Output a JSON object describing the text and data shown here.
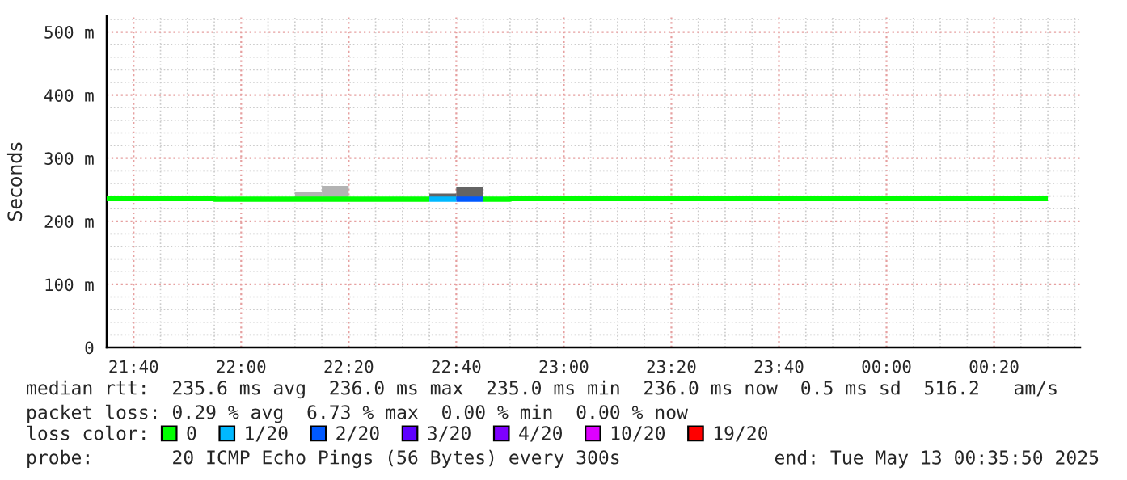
{
  "chart_data": {
    "type": "step",
    "ylabel": "Seconds",
    "x": [
      "2025-05-12T21:35",
      "2025-05-12T21:40",
      "2025-05-12T21:45",
      "2025-05-12T21:50",
      "2025-05-12T21:55",
      "2025-05-12T22:00",
      "2025-05-12T22:05",
      "2025-05-12T22:10",
      "2025-05-12T22:15",
      "2025-05-12T22:20",
      "2025-05-12T22:25",
      "2025-05-12T22:30",
      "2025-05-12T22:35",
      "2025-05-12T22:40",
      "2025-05-12T22:45",
      "2025-05-12T22:50",
      "2025-05-12T22:55",
      "2025-05-12T23:00",
      "2025-05-12T23:05",
      "2025-05-12T23:10",
      "2025-05-12T23:15",
      "2025-05-12T23:20",
      "2025-05-12T23:25",
      "2025-05-12T23:30",
      "2025-05-12T23:35",
      "2025-05-12T23:40",
      "2025-05-12T23:45",
      "2025-05-12T23:50",
      "2025-05-12T23:55",
      "2025-05-13T00:00",
      "2025-05-13T00:05",
      "2025-05-13T00:10",
      "2025-05-13T00:15",
      "2025-05-13T00:20",
      "2025-05-13T00:25",
      "2025-05-13T00:30"
    ],
    "series": [
      {
        "type": "bar",
        "x": [
          "2025-05-12T22:12:30",
          "2025-05-12T22:17:30",
          "2025-05-12T22:37:30",
          "2025-05-12T22:42:30"
        ],
        "colors": [
          "#b3b3b3",
          "#b3b3b3",
          "#646464",
          "#646464"
        ],
        "base": [
          235,
          235,
          235,
          235
        ],
        "values": [
          11,
          21,
          9,
          19
        ]
      },
      {
        "name": "0",
        "color": "#00ff00",
        "values": [
          236,
          236,
          236,
          236,
          235,
          235,
          235,
          235,
          235,
          235,
          235,
          235,
          null,
          null,
          235,
          236,
          236,
          236,
          236,
          236,
          236,
          236,
          236,
          236,
          236,
          236,
          236,
          236,
          236,
          236,
          236,
          236,
          236,
          236,
          236,
          236
        ]
      },
      {
        "name": "1/20",
        "color": "#00b8ff",
        "x": [
          "2025-05-12T22:35",
          "2025-05-12T22:40"
        ],
        "values": [
          235,
          235
        ]
      },
      {
        "name": "2/20",
        "color": "#0059ff",
        "x": [
          "2025-05-12T22:40",
          "2025-05-12T22:45"
        ],
        "values": [
          235,
          235
        ]
      },
      {
        "name": "3/20",
        "color": "#5e00ff",
        "values": [
          null,
          null,
          null,
          null,
          null,
          null,
          null,
          null,
          null,
          null,
          null,
          null,
          null,
          null,
          null,
          null,
          null,
          null,
          null,
          null,
          null,
          null,
          null,
          null,
          null,
          null,
          null,
          null,
          null,
          null,
          null,
          null,
          null,
          null,
          null,
          null
        ]
      },
      {
        "name": "4/20",
        "color": "#7e00ff",
        "values": [
          null,
          null,
          null,
          null,
          null,
          null,
          null,
          null,
          null,
          null,
          null,
          null,
          null,
          null,
          null,
          null,
          null,
          null,
          null,
          null,
          null,
          null,
          null,
          null,
          null,
          null,
          null,
          null,
          null,
          null,
          null,
          null,
          null,
          null,
          null,
          null
        ]
      },
      {
        "name": "10/20",
        "color": "#dd00ff",
        "values": [
          null,
          null,
          null,
          null,
          null,
          null,
          null,
          null,
          null,
          null,
          null,
          null,
          null,
          null,
          null,
          null,
          null,
          null,
          null,
          null,
          null,
          null,
          null,
          null,
          null,
          null,
          null,
          null,
          null,
          null,
          null,
          null,
          null,
          null,
          null,
          null
        ]
      },
      {
        "name": "19/20",
        "color": "#ff0000",
        "values": [
          null,
          null,
          null,
          null,
          null,
          null,
          null,
          null,
          null,
          null,
          null,
          null,
          null,
          null,
          null,
          null,
          null,
          null,
          null,
          null,
          null,
          null,
          null,
          null,
          null,
          null,
          null,
          null,
          null,
          null,
          null,
          null,
          null,
          null,
          null,
          null
        ]
      }
    ],
    "xlim": [
      "2025-05-12T21:35",
      "2025-05-13T00:36"
    ],
    "xticks": [
      {
        "value": "2025-05-12T21:40",
        "label": "21:40"
      },
      {
        "value": "2025-05-12T22:00",
        "label": "22:00"
      },
      {
        "value": "2025-05-12T22:20",
        "label": "22:20"
      },
      {
        "value": "2025-05-12T22:40",
        "label": "22:40"
      },
      {
        "value": "2025-05-12T23:00",
        "label": "23:00"
      },
      {
        "value": "2025-05-12T23:20",
        "label": "23:20"
      },
      {
        "value": "2025-05-12T23:40",
        "label": "23:40"
      },
      {
        "value": "2025-05-13T00:00",
        "label": "00:00"
      },
      {
        "value": "2025-05-13T00:20",
        "label": "00:20"
      }
    ],
    "ylim": [
      0,
      525
    ],
    "yticks": [
      0,
      {
        "value": 100,
        "label": "100 m"
      },
      {
        "value": 200,
        "label": "200 m"
      },
      {
        "value": 300,
        "label": "300 m"
      },
      {
        "value": 400,
        "label": "400 m"
      },
      {
        "value": 500,
        "label": "500 m"
      }
    ],
    "grid": true,
    "legend": "bottom",
    "legend_title": "loss color:",
    "annotations": [
      "median rtt:  235.6 ms avg  236.0 ms max  235.0 ms min  236.0 ms now  0.5 ms sd  516.2   am/s",
      "packet loss: 0.29 % avg  6.73 % max  0.00 % min  0.00 % now",
      "probe:       20 ICMP Echo Pings (56 Bytes) every 300s",
      "end: Tue May 13 00:35:50 2025"
    ]
  }
}
